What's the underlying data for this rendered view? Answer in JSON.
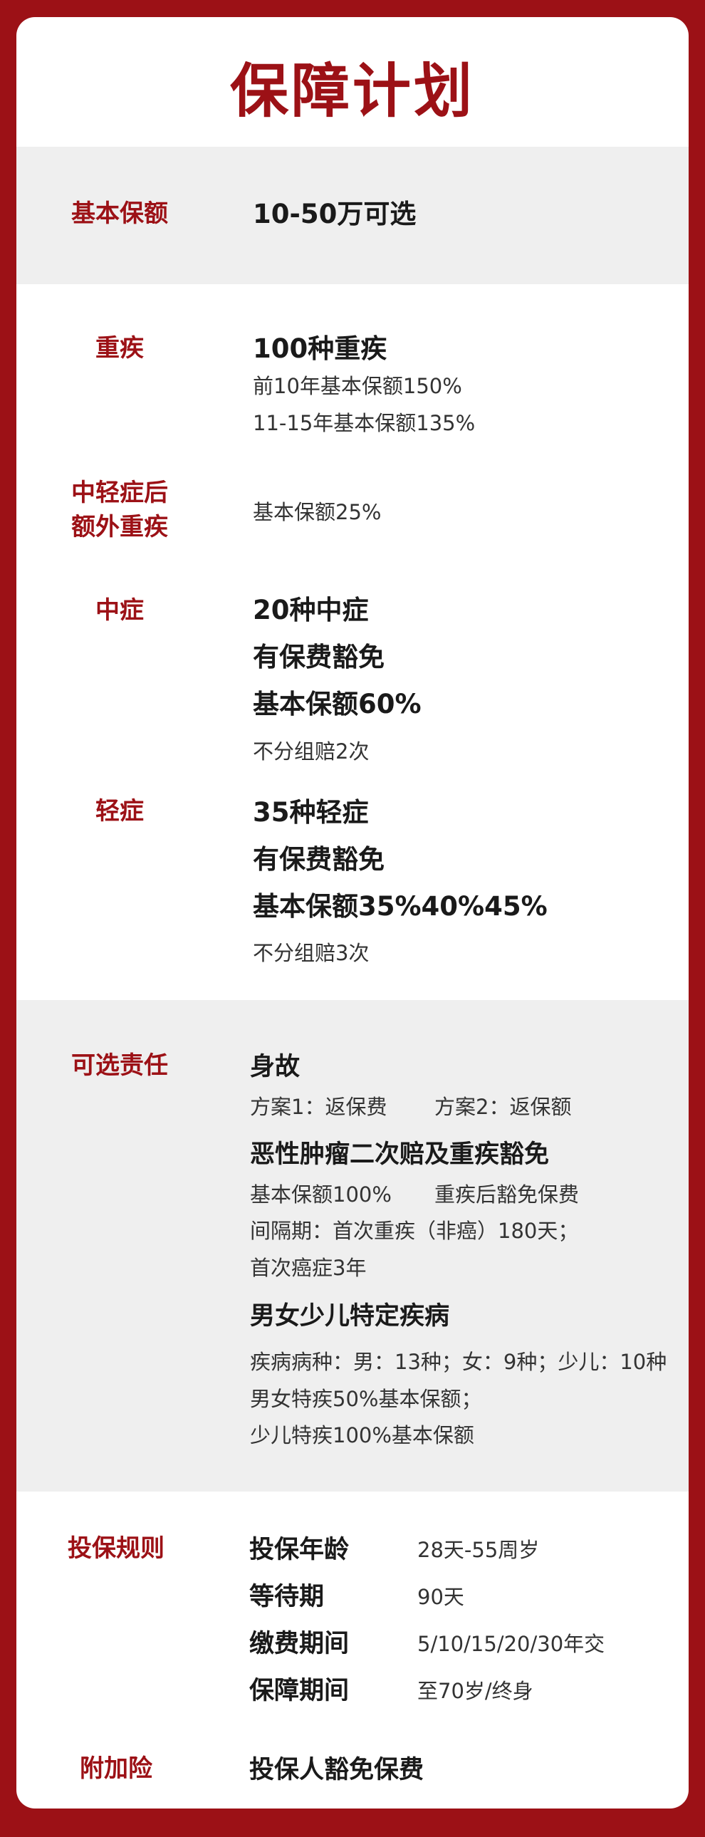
{
  "title": "保障计划",
  "basic": {
    "label": "基本保额",
    "value": "10-50万可选"
  },
  "critical": {
    "label": "重疾",
    "main": "100种重疾",
    "line1": "前10年基本保额150%",
    "line2": "11-15年基本保额135%"
  },
  "extra_critical": {
    "label_line1": "中轻症后",
    "label_line2": "额外重疾",
    "value": "基本保额25%"
  },
  "moderate": {
    "label": "中症",
    "line1": "20种中症",
    "line2": "有保费豁免",
    "line3": "基本保额60%",
    "note": "不分组赔2次"
  },
  "mild": {
    "label": "轻症",
    "line1": "35种轻症",
    "line2": "有保费豁免",
    "line3": "基本保额35%40%45%",
    "note": "不分组赔3次"
  },
  "optional": {
    "label": "可选责任",
    "death_title": "身故",
    "death_plan1": "方案1：返保费",
    "death_plan2": "方案2：返保额",
    "tumor_title": "恶性肿瘤二次赔及重疾豁免",
    "tumor_amount": "基本保额100%",
    "tumor_waiver": "重疾后豁免保费",
    "tumor_interval1": "间隔期：首次重疾（非癌）180天；",
    "tumor_interval2": "首次癌症3年",
    "special_title": "男女少儿特定疾病",
    "special_kinds": "疾病病种：男：13种；女：9种；少儿：10种",
    "special_adult": "男女特疾50%基本保额；",
    "special_child": "少儿特疾100%基本保额"
  },
  "rules": {
    "label": "投保规则",
    "items": [
      {
        "key": "投保年龄",
        "value": "28天-55周岁"
      },
      {
        "key": "等待期",
        "value": "90天"
      },
      {
        "key": "缴费期间",
        "value": "5/10/15/20/30年交"
      },
      {
        "key": "保障期间",
        "value": "至70岁/终身"
      }
    ]
  },
  "rider": {
    "label": "附加险",
    "value": "投保人豁免保费"
  }
}
